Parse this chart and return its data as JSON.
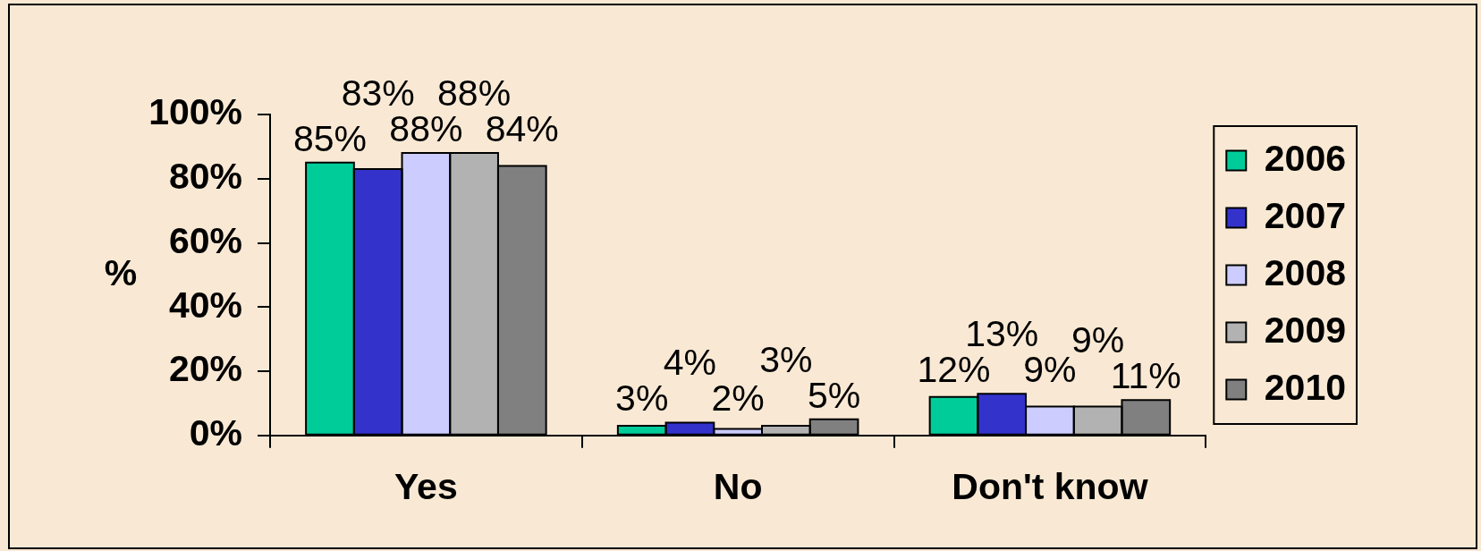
{
  "chart_data": {
    "type": "bar",
    "ylabel": "%",
    "categories": [
      "Yes",
      "No",
      "Don't know"
    ],
    "series": [
      {
        "name": "2006",
        "color": "#00cc99",
        "values": [
          85,
          3,
          12
        ],
        "value_labels": [
          "85%",
          "3%",
          "12%"
        ]
      },
      {
        "name": "2007",
        "color": "#3333cc",
        "values": [
          83,
          4,
          13
        ],
        "value_labels": [
          "83%",
          "4%",
          "13%"
        ]
      },
      {
        "name": "2008",
        "color": "#ccccff",
        "values": [
          88,
          2,
          9
        ],
        "value_labels": [
          "88%",
          "2%",
          "9%"
        ]
      },
      {
        "name": "2009",
        "color": "#b2b2b2",
        "values": [
          88,
          3,
          9
        ],
        "value_labels": [
          "88%",
          "3%",
          "9%"
        ]
      },
      {
        "name": "2010",
        "color": "#808080",
        "values": [
          84,
          5,
          11
        ],
        "value_labels": [
          "84%",
          "5%",
          "11%"
        ]
      }
    ],
    "ylim": [
      0,
      100
    ],
    "yticks": [
      {
        "value": 0,
        "label": "0%"
      },
      {
        "value": 20,
        "label": "20%"
      },
      {
        "value": 40,
        "label": "40%"
      },
      {
        "value": 60,
        "label": "60%"
      },
      {
        "value": 80,
        "label": "80%"
      },
      {
        "value": 100,
        "label": "100%"
      }
    ],
    "grid": false,
    "legend": "right"
  }
}
